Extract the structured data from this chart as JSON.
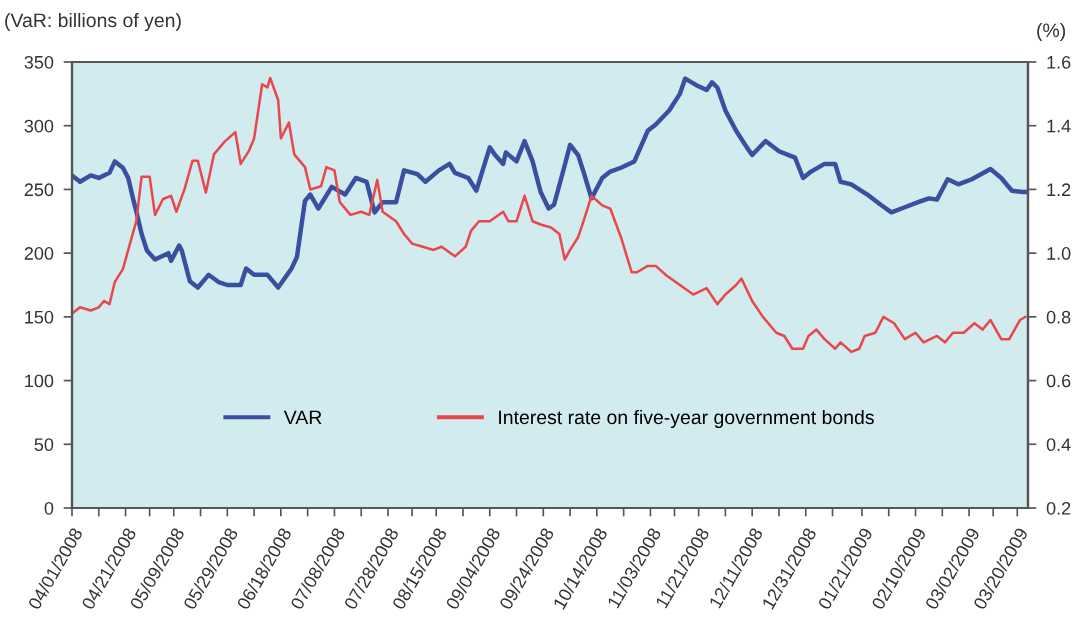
{
  "chart_data": {
    "type": "line",
    "ylabel": "(VaR: billions of yen)",
    "y2label": "(%)",
    "xlim": [
      "2008-04-01",
      "2009-03-24"
    ],
    "xticks": [
      {
        "value": "2008-04-01",
        "label": "04/01/2008"
      },
      {
        "value": "2008-04-11",
        "label": null
      },
      {
        "value": "2008-04-21",
        "label": "04/21/2008"
      },
      {
        "value": "2008-04-30",
        "label": null
      },
      {
        "value": "2008-05-09",
        "label": "05/09/2008"
      },
      {
        "value": "2008-05-19",
        "label": null
      },
      {
        "value": "2008-05-29",
        "label": "05/29/2008"
      },
      {
        "value": "2008-06-08",
        "label": null
      },
      {
        "value": "2008-06-18",
        "label": "06/18/2008"
      },
      {
        "value": "2008-06-28",
        "label": null
      },
      {
        "value": "2008-07-08",
        "label": "07/08/2008"
      },
      {
        "value": "2008-07-18",
        "label": null
      },
      {
        "value": "2008-07-28",
        "label": "07/28/2008"
      },
      {
        "value": "2008-08-06",
        "label": null
      },
      {
        "value": "2008-08-15",
        "label": "08/15/2008"
      },
      {
        "value": "2008-08-25",
        "label": null
      },
      {
        "value": "2008-09-04",
        "label": "09/04/2008"
      },
      {
        "value": "2008-09-14",
        "label": null
      },
      {
        "value": "2008-09-24",
        "label": "09/24/2008"
      },
      {
        "value": "2008-10-04",
        "label": null
      },
      {
        "value": "2008-10-14",
        "label": "10/14/2008"
      },
      {
        "value": "2008-10-24",
        "label": null
      },
      {
        "value": "2008-11-03",
        "label": "11/03/2008"
      },
      {
        "value": "2008-11-12",
        "label": null
      },
      {
        "value": "2008-11-21",
        "label": "11/21/2008"
      },
      {
        "value": "2008-12-01",
        "label": null
      },
      {
        "value": "2008-12-11",
        "label": "12/11/2008"
      },
      {
        "value": "2008-12-21",
        "label": null
      },
      {
        "value": "2008-12-31",
        "label": "12/31/2008"
      },
      {
        "value": "2009-01-10",
        "label": null
      },
      {
        "value": "2009-01-21",
        "label": "01/21/2009"
      },
      {
        "value": "2009-01-31",
        "label": null
      },
      {
        "value": "2009-02-10",
        "label": "02/10/2009"
      },
      {
        "value": "2009-02-20",
        "label": null
      },
      {
        "value": "2009-03-02",
        "label": "03/02/2009"
      },
      {
        "value": "2009-03-11",
        "label": null
      },
      {
        "value": "2009-03-20",
        "label": "03/20/2009"
      }
    ],
    "ylim": [
      0,
      350
    ],
    "yticks": [
      0,
      50,
      100,
      150,
      200,
      250,
      300,
      350
    ],
    "y2lim": [
      0.2,
      1.6
    ],
    "y2ticks": [
      {
        "value": 0.2,
        "label": "0.2"
      },
      {
        "value": 0.4,
        "label": "0.4"
      },
      {
        "value": 0.6,
        "label": "0.6"
      },
      {
        "value": 0.8,
        "label": "0.8"
      },
      {
        "value": 1.0,
        "label": "1.0"
      },
      {
        "value": 1.2,
        "label": "1.2"
      },
      {
        "value": 1.4,
        "label": "1.4"
      },
      {
        "value": 1.6,
        "label": "1.6"
      }
    ],
    "grid": false,
    "legend": "bottom",
    "marker": "none",
    "line_style": "solid",
    "series": [
      {
        "name": "VAR",
        "color": "#3a4fa0",
        "axis": "y",
        "x": [
          "2008-04-01",
          "2008-04-04",
          "2008-04-08",
          "2008-04-11",
          "2008-04-15",
          "2008-04-17",
          "2008-04-20",
          "2008-04-22",
          "2008-04-24",
          "2008-04-25",
          "2008-04-27",
          "2008-04-29",
          "2008-05-02",
          "2008-05-07",
          "2008-05-08",
          "2008-05-11",
          "2008-05-12",
          "2008-05-15",
          "2008-05-18",
          "2008-05-22",
          "2008-05-26",
          "2008-05-29",
          "2008-06-03",
          "2008-06-05",
          "2008-06-08",
          "2008-06-13",
          "2008-06-17",
          "2008-06-22",
          "2008-06-24",
          "2008-06-27",
          "2008-06-29",
          "2008-07-02",
          "2008-07-07",
          "2008-07-12",
          "2008-07-16",
          "2008-07-20",
          "2008-07-23",
          "2008-07-26",
          "2008-07-31",
          "2008-08-03",
          "2008-08-08",
          "2008-08-11",
          "2008-08-16",
          "2008-08-20",
          "2008-08-22",
          "2008-08-27",
          "2008-08-30",
          "2008-09-04",
          "2008-09-06",
          "2008-09-09",
          "2008-09-10",
          "2008-09-14",
          "2008-09-17",
          "2008-09-20",
          "2008-09-23",
          "2008-09-26",
          "2008-09-28",
          "2008-10-02",
          "2008-10-04",
          "2008-10-07",
          "2008-10-09",
          "2008-10-12",
          "2008-10-16",
          "2008-10-19",
          "2008-10-23",
          "2008-10-28",
          "2008-11-02",
          "2008-11-05",
          "2008-11-10",
          "2008-11-14",
          "2008-11-16",
          "2008-11-20",
          "2008-11-24",
          "2008-11-26",
          "2008-11-28",
          "2008-12-01",
          "2008-12-05",
          "2008-12-09",
          "2008-12-11",
          "2008-12-16",
          "2008-12-21",
          "2008-12-27",
          "2008-12-30",
          "2009-01-02",
          "2009-01-07",
          "2009-01-11",
          "2009-01-13",
          "2009-01-17",
          "2009-01-23",
          "2009-01-28",
          "2009-02-01",
          "2009-02-06",
          "2009-02-11",
          "2009-02-15",
          "2009-02-18",
          "2009-02-22",
          "2009-02-26",
          "2009-03-03",
          "2009-03-10",
          "2009-03-14",
          "2009-03-18",
          "2009-03-22",
          "2009-03-23"
        ],
        "values": [
          261,
          256,
          261,
          259,
          263,
          272,
          267,
          259,
          241,
          233,
          215,
          202,
          195,
          200,
          194,
          206,
          202,
          178,
          173,
          183,
          177,
          175,
          175,
          188,
          183,
          183,
          173,
          188,
          197,
          241,
          246,
          235,
          252,
          246,
          259,
          256,
          232,
          240,
          240,
          265,
          262,
          256,
          265,
          270,
          263,
          259,
          249,
          283,
          277,
          270,
          279,
          272,
          288,
          272,
          248,
          235,
          238,
          269,
          285,
          277,
          264,
          243,
          259,
          264,
          267,
          272,
          296,
          301,
          312,
          325,
          337,
          332,
          328,
          334,
          330,
          312,
          296,
          283,
          277,
          288,
          280,
          275,
          259,
          264,
          270,
          270,
          256,
          254,
          246,
          238,
          232,
          236,
          240,
          243,
          242,
          258,
          254,
          258,
          266,
          259,
          249,
          248,
          248
        ]
      },
      {
        "name": "Interest rate on five-year government bonds",
        "color": "#e8474c",
        "axis": "y2",
        "x": [
          "2008-04-01",
          "2008-04-04",
          "2008-04-08",
          "2008-04-11",
          "2008-04-13",
          "2008-04-15",
          "2008-04-17",
          "2008-04-20",
          "2008-04-22",
          "2008-04-25",
          "2008-04-27",
          "2008-04-30",
          "2008-05-02",
          "2008-05-05",
          "2008-05-08",
          "2008-05-10",
          "2008-05-13",
          "2008-05-16",
          "2008-05-18",
          "2008-05-21",
          "2008-05-24",
          "2008-05-28",
          "2008-06-01",
          "2008-06-03",
          "2008-06-06",
          "2008-06-08",
          "2008-06-11",
          "2008-06-13",
          "2008-06-14",
          "2008-06-17",
          "2008-06-18",
          "2008-06-21",
          "2008-06-23",
          "2008-06-27",
          "2008-06-29",
          "2008-07-03",
          "2008-07-05",
          "2008-07-08",
          "2008-07-10",
          "2008-07-14",
          "2008-07-18",
          "2008-07-21",
          "2008-07-24",
          "2008-07-26",
          "2008-07-31",
          "2008-08-03",
          "2008-08-06",
          "2008-08-10",
          "2008-08-14",
          "2008-08-17",
          "2008-08-22",
          "2008-08-26",
          "2008-08-28",
          "2008-08-31",
          "2008-09-04",
          "2008-09-09",
          "2008-09-11",
          "2008-09-14",
          "2008-09-17",
          "2008-09-20",
          "2008-09-23",
          "2008-09-27",
          "2008-09-30",
          "2008-10-02",
          "2008-10-04",
          "2008-10-07",
          "2008-10-09",
          "2008-10-12",
          "2008-10-16",
          "2008-10-19",
          "2008-10-23",
          "2008-10-27",
          "2008-10-29",
          "2008-11-02",
          "2008-11-05",
          "2008-11-09",
          "2008-11-14",
          "2008-11-19",
          "2008-11-24",
          "2008-11-28",
          "2008-12-01",
          "2008-12-05",
          "2008-12-07",
          "2008-12-11",
          "2008-12-15",
          "2008-12-20",
          "2008-12-23",
          "2008-12-26",
          "2008-12-30",
          "2009-01-01",
          "2009-01-04",
          "2009-01-07",
          "2009-01-11",
          "2009-01-13",
          "2009-01-17",
          "2009-01-20",
          "2009-01-22",
          "2009-01-26",
          "2009-01-29",
          "2009-02-02",
          "2009-02-06",
          "2009-02-10",
          "2009-02-13",
          "2009-02-18",
          "2009-02-21",
          "2009-02-24",
          "2009-02-28",
          "2009-03-04",
          "2009-03-07",
          "2009-03-10",
          "2009-03-14",
          "2009-03-17",
          "2009-03-21",
          "2009-03-23"
        ],
        "values": [
          0.81,
          0.83,
          0.82,
          0.83,
          0.85,
          0.84,
          0.91,
          0.95,
          1.01,
          1.1,
          1.24,
          1.24,
          1.12,
          1.17,
          1.18,
          1.13,
          1.2,
          1.29,
          1.29,
          1.19,
          1.31,
          1.35,
          1.38,
          1.28,
          1.32,
          1.36,
          1.53,
          1.52,
          1.55,
          1.48,
          1.36,
          1.41,
          1.31,
          1.27,
          1.2,
          1.21,
          1.27,
          1.26,
          1.16,
          1.12,
          1.13,
          1.12,
          1.23,
          1.13,
          1.1,
          1.06,
          1.03,
          1.02,
          1.01,
          1.02,
          0.99,
          1.02,
          1.07,
          1.1,
          1.1,
          1.13,
          1.1,
          1.1,
          1.18,
          1.1,
          1.09,
          1.08,
          1.06,
          0.98,
          1.01,
          1.05,
          1.1,
          1.18,
          1.15,
          1.14,
          1.05,
          0.94,
          0.94,
          0.96,
          0.96,
          0.93,
          0.9,
          0.87,
          0.89,
          0.84,
          0.87,
          0.9,
          0.92,
          0.85,
          0.8,
          0.75,
          0.74,
          0.7,
          0.7,
          0.74,
          0.76,
          0.73,
          0.7,
          0.72,
          0.69,
          0.7,
          0.74,
          0.75,
          0.8,
          0.78,
          0.73,
          0.75,
          0.72,
          0.74,
          0.72,
          0.75,
          0.75,
          0.78,
          0.76,
          0.79,
          0.73,
          0.73,
          0.79,
          0.8
        ]
      }
    ]
  }
}
